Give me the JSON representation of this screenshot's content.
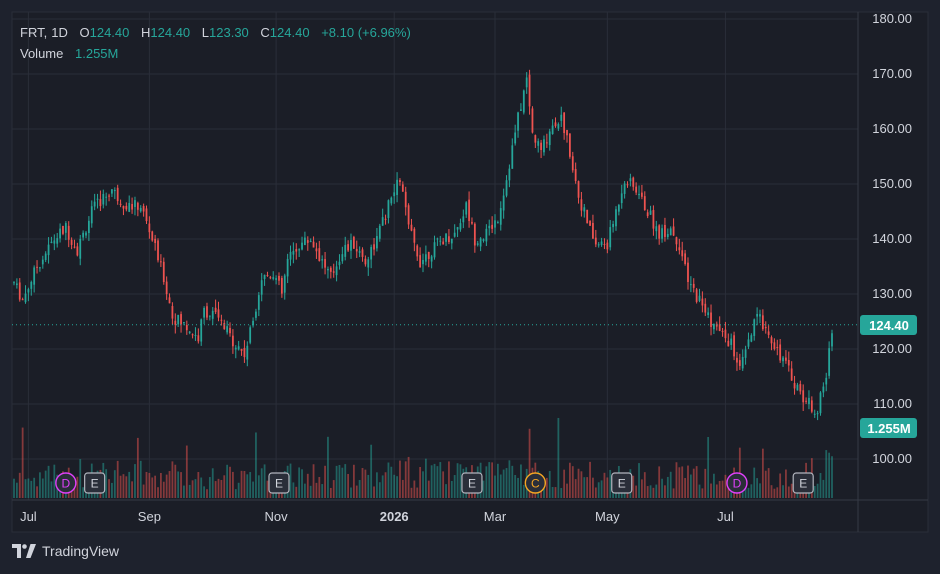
{
  "header": {
    "symbol": "FRT",
    "interval": "1D",
    "open_label": "O",
    "open": "124.40",
    "high_label": "H",
    "high": "124.40",
    "low_label": "L",
    "low": "123.30",
    "close_label": "C",
    "close": "124.40",
    "change": "+8.10 (+6.96%)",
    "volume_label": "Volume",
    "volume": "1.255M"
  },
  "brand": {
    "name": "TradingView",
    "logo_icon": "tradingview-logo-icon"
  },
  "colors": {
    "up": "#26a69a",
    "down": "#ef5350",
    "bg": "#1e222d",
    "grid": "#2a2e39",
    "text": "#d1d4dc",
    "dividend": "#e040fb",
    "earnings": "#b2b5be",
    "split": "#f5a623"
  },
  "chart_data": {
    "type": "candlestick",
    "symbol": "FRT",
    "interval": "1D",
    "ylim": [
      93,
      182
    ],
    "y_ticks": [
      "180.00",
      "170.00",
      "160.00",
      "150.00",
      "140.00",
      "130.00",
      "120.00",
      "110.00",
      "100.00"
    ],
    "x_ticks": [
      "Jul",
      "Sep",
      "Nov",
      "2026",
      "Mar",
      "May",
      "Jul"
    ],
    "last_price": "124.40",
    "last_volume": "1.255M",
    "grid": true,
    "price_path": [
      [
        0,
        132
      ],
      [
        3,
        129
      ],
      [
        8,
        135
      ],
      [
        14,
        140
      ],
      [
        18,
        142
      ],
      [
        22,
        138
      ],
      [
        27,
        145
      ],
      [
        30,
        147
      ],
      [
        34,
        149
      ],
      [
        37,
        147
      ],
      [
        40,
        146
      ],
      [
        44,
        146
      ],
      [
        48,
        140
      ],
      [
        52,
        133
      ],
      [
        55,
        126
      ],
      [
        60,
        124
      ],
      [
        64,
        122
      ],
      [
        66,
        127
      ],
      [
        70,
        126
      ],
      [
        74,
        123
      ],
      [
        77,
        121
      ],
      [
        80,
        119
      ],
      [
        82,
        123
      ],
      [
        86,
        133
      ],
      [
        90,
        134
      ],
      [
        93,
        130
      ],
      [
        95,
        136
      ],
      [
        99,
        139
      ],
      [
        103,
        140
      ],
      [
        106,
        137
      ],
      [
        110,
        133
      ],
      [
        114,
        138
      ],
      [
        118,
        139
      ],
      [
        122,
        136
      ],
      [
        126,
        140
      ],
      [
        130,
        146
      ],
      [
        134,
        151
      ],
      [
        137,
        142
      ],
      [
        141,
        136
      ],
      [
        145,
        138
      ],
      [
        149,
        140
      ],
      [
        153,
        141
      ],
      [
        157,
        146
      ],
      [
        160,
        140
      ],
      [
        164,
        141
      ],
      [
        168,
        144
      ],
      [
        171,
        151
      ],
      [
        175,
        162
      ],
      [
        178,
        169
      ],
      [
        180,
        159
      ],
      [
        183,
        156
      ],
      [
        187,
        161
      ],
      [
        190,
        162
      ],
      [
        193,
        156
      ],
      [
        196,
        148
      ],
      [
        199,
        143
      ],
      [
        202,
        139
      ],
      [
        206,
        139
      ],
      [
        209,
        145
      ],
      [
        212,
        151
      ],
      [
        216,
        149
      ],
      [
        220,
        145
      ],
      [
        224,
        141
      ],
      [
        228,
        142
      ],
      [
        231,
        139
      ],
      [
        234,
        132
      ],
      [
        238,
        129
      ],
      [
        242,
        125
      ],
      [
        245,
        123
      ],
      [
        249,
        121
      ],
      [
        252,
        116
      ],
      [
        255,
        121
      ],
      [
        258,
        126
      ],
      [
        261,
        124
      ],
      [
        264,
        121
      ],
      [
        267,
        118
      ],
      [
        270,
        115
      ],
      [
        273,
        112
      ],
      [
        276,
        110
      ],
      [
        279,
        109
      ],
      [
        282,
        115
      ],
      [
        284,
        124
      ]
    ],
    "volume_path": [
      [
        0,
        0.32
      ],
      [
        20,
        0.33
      ],
      [
        37,
        0.39
      ],
      [
        56,
        0.36
      ],
      [
        75,
        0.34
      ],
      [
        90,
        0.32
      ],
      [
        110,
        0.37
      ],
      [
        140,
        0.4
      ],
      [
        160,
        0.34
      ],
      [
        176,
        0.38
      ],
      [
        195,
        0.36
      ],
      [
        210,
        0.33
      ],
      [
        230,
        0.35
      ],
      [
        255,
        0.31
      ],
      [
        270,
        0.28
      ],
      [
        284,
        0.58
      ]
    ],
    "volume_scale_million": 1.255,
    "events": [
      {
        "type": "dividend",
        "label": "D",
        "bar": 18
      },
      {
        "type": "earnings",
        "label": "E",
        "bar": 28
      },
      {
        "type": "earnings",
        "label": "E",
        "bar": 92
      },
      {
        "type": "earnings",
        "label": "E",
        "bar": 159
      },
      {
        "type": "split",
        "label": "C",
        "bar": 181
      },
      {
        "type": "earnings",
        "label": "E",
        "bar": 211
      },
      {
        "type": "dividend",
        "label": "D",
        "bar": 251
      },
      {
        "type": "earnings",
        "label": "E",
        "bar": 274
      }
    ]
  }
}
